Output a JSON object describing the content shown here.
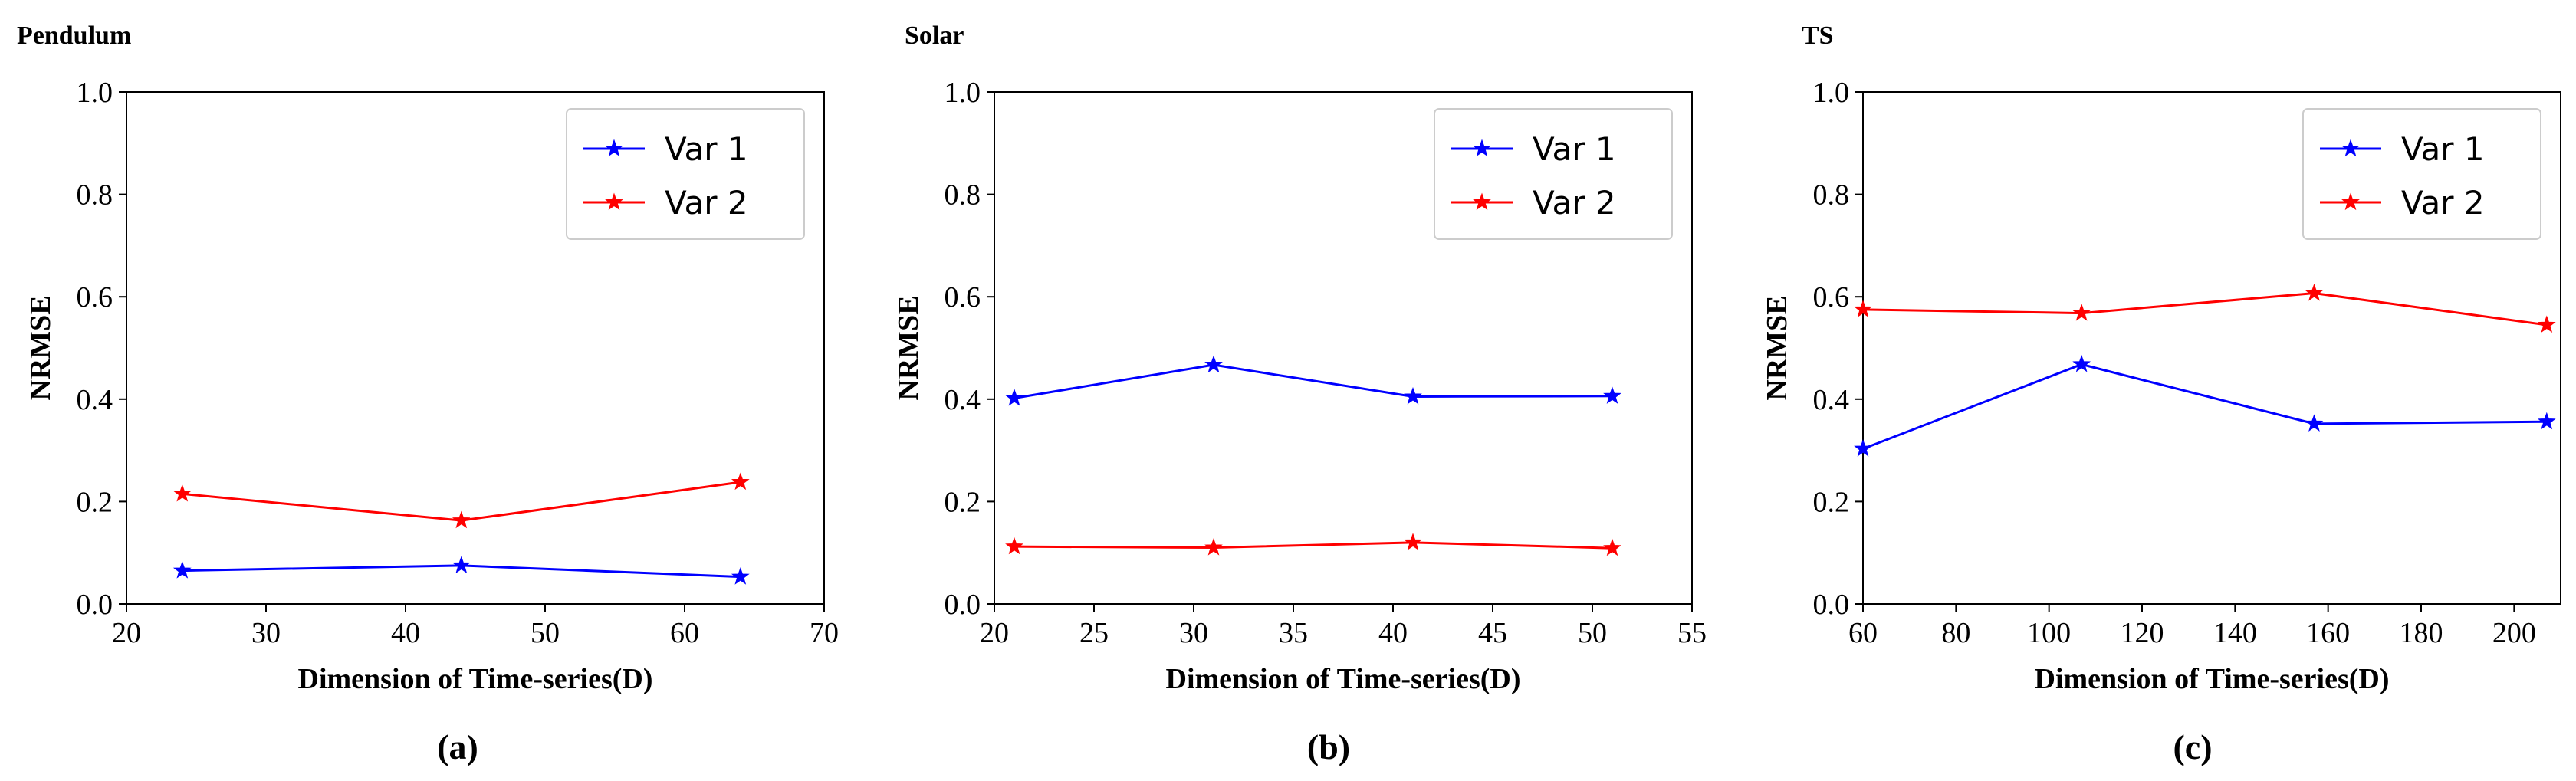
{
  "figure": {
    "captions": [
      "(a)",
      "(b)",
      "(c)"
    ]
  },
  "chart_data": [
    {
      "type": "line",
      "title": "Pendulum",
      "xlabel": "Dimension of Time-series(D)",
      "ylabel": "NRMSE",
      "xlim": [
        20,
        70
      ],
      "ylim": [
        0,
        1.0
      ],
      "xticks": [
        20,
        30,
        40,
        50,
        60,
        70
      ],
      "yticks": [
        0.0,
        0.2,
        0.4,
        0.6,
        0.8,
        1.0
      ],
      "yticklabels": [
        "0.0",
        "0.2",
        "0.4",
        "0.6",
        "0.8",
        "1.0"
      ],
      "legend_position": "top-right",
      "marker": "star",
      "series": [
        {
          "name": "Var 1",
          "color": "#0000ff",
          "x": [
            24,
            44,
            64
          ],
          "values": [
            0.065,
            0.075,
            0.053
          ]
        },
        {
          "name": "Var 2",
          "color": "#ff0000",
          "x": [
            24,
            44,
            64
          ],
          "values": [
            0.215,
            0.163,
            0.238
          ]
        }
      ]
    },
    {
      "type": "line",
      "title": "Solar",
      "xlabel": "Dimension of Time-series(D)",
      "ylabel": "NRMSE",
      "xlim": [
        20,
        55
      ],
      "ylim": [
        0,
        1.0
      ],
      "xticks": [
        20,
        25,
        30,
        35,
        40,
        45,
        50,
        55
      ],
      "yticks": [
        0.0,
        0.2,
        0.4,
        0.6,
        0.8,
        1.0
      ],
      "yticklabels": [
        "0.0",
        "0.2",
        "0.4",
        "0.6",
        "0.8",
        "1.0"
      ],
      "legend_position": "top-right",
      "marker": "star",
      "series": [
        {
          "name": "Var 1",
          "color": "#0000ff",
          "x": [
            21,
            31,
            41,
            51
          ],
          "values": [
            0.402,
            0.467,
            0.405,
            0.406
          ]
        },
        {
          "name": "Var 2",
          "color": "#ff0000",
          "x": [
            21,
            31,
            41,
            51
          ],
          "values": [
            0.112,
            0.11,
            0.12,
            0.109
          ]
        }
      ]
    },
    {
      "type": "line",
      "title": "TS",
      "xlabel": "Dimension of Time-series(D)",
      "ylabel": "NRMSE",
      "xlim": [
        60,
        210
      ],
      "ylim": [
        0,
        1.0
      ],
      "xticks": [
        60,
        80,
        100,
        120,
        140,
        160,
        180,
        200
      ],
      "yticks": [
        0.0,
        0.2,
        0.4,
        0.6,
        0.8,
        1.0
      ],
      "yticklabels": [
        "0.0",
        "0.2",
        "0.4",
        "0.6",
        "0.8",
        "1.0"
      ],
      "legend_position": "top-right",
      "marker": "star",
      "series": [
        {
          "name": "Var 1",
          "color": "#0000ff",
          "x": [
            60,
            107,
            157,
            207
          ],
          "values": [
            0.303,
            0.468,
            0.352,
            0.356
          ]
        },
        {
          "name": "Var 2",
          "color": "#ff0000",
          "x": [
            60,
            107,
            157,
            207
          ],
          "values": [
            0.575,
            0.568,
            0.607,
            0.545
          ]
        }
      ]
    }
  ]
}
